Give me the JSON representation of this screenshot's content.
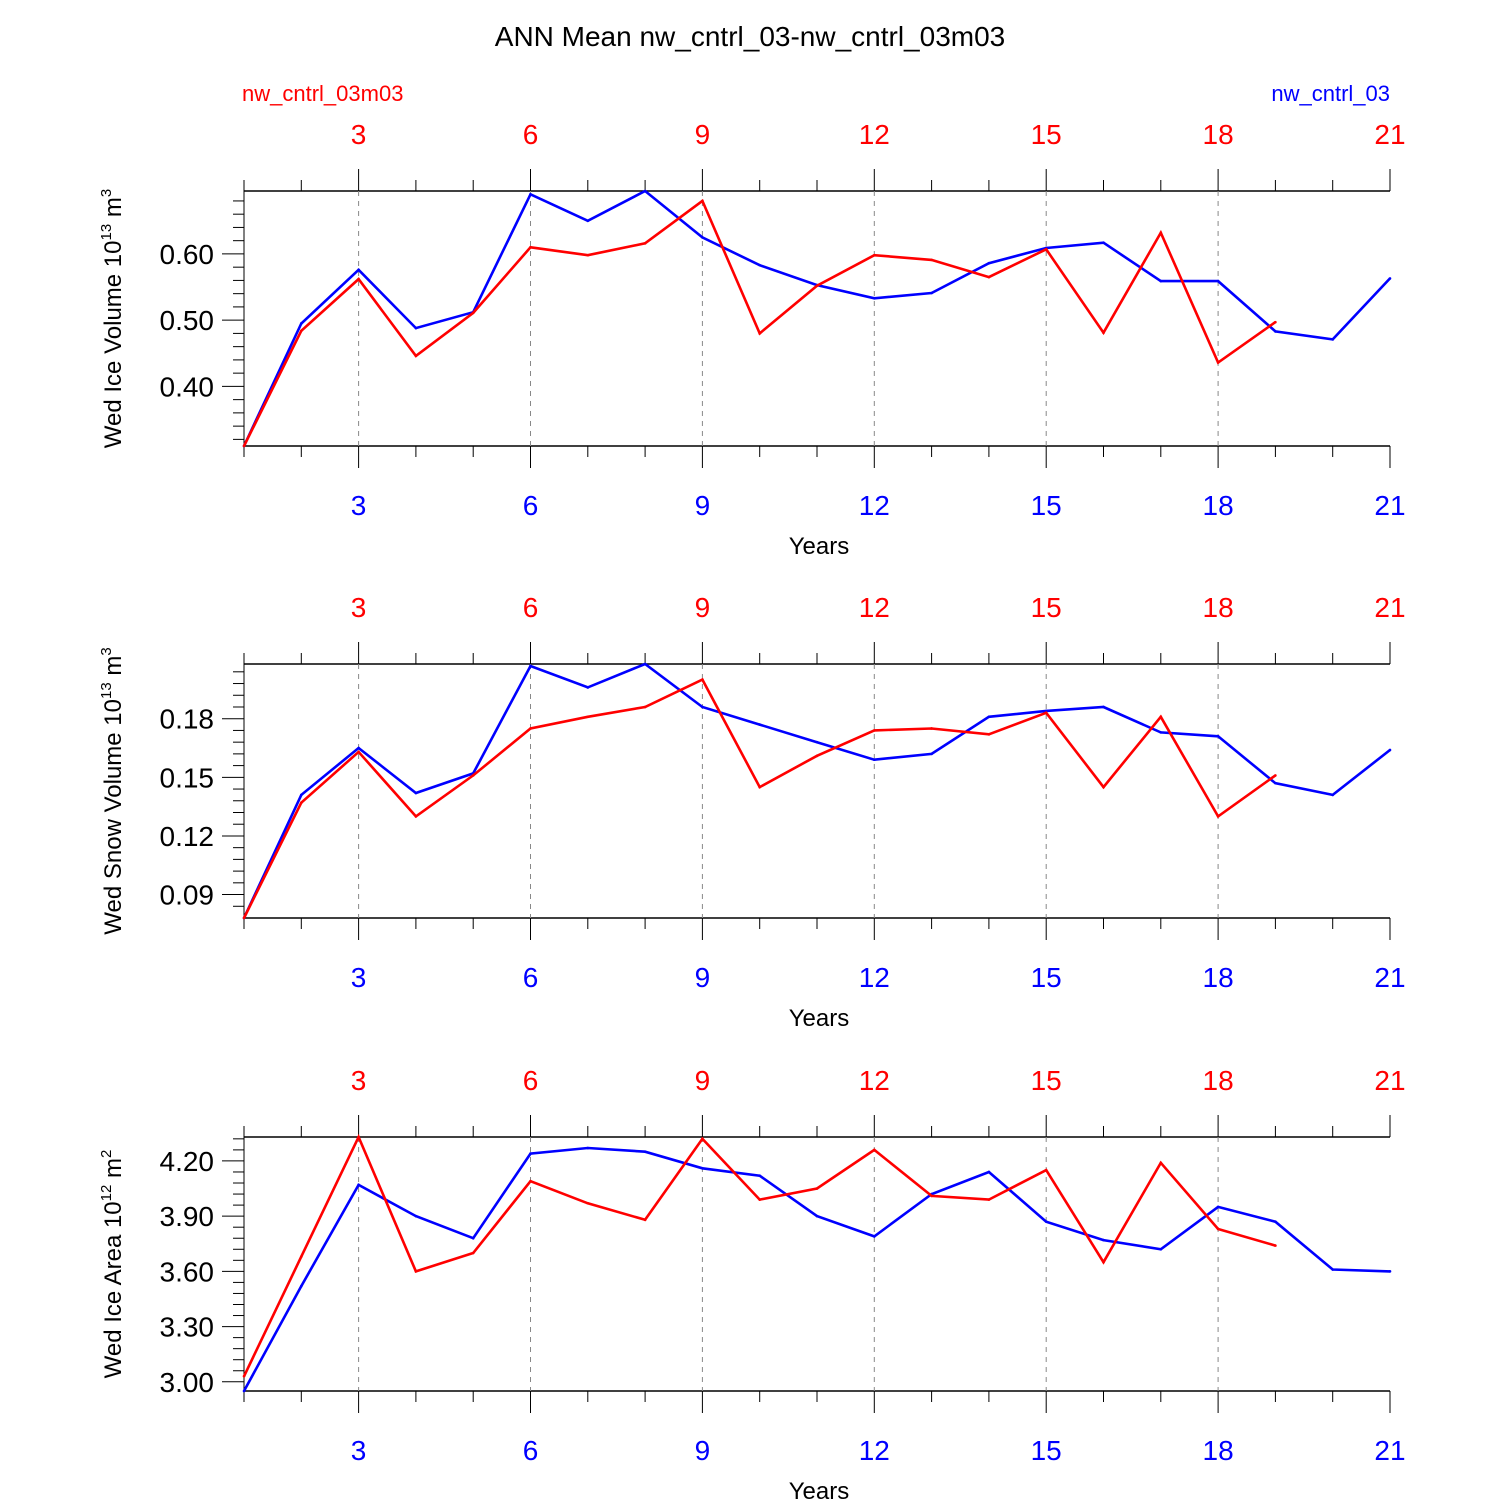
{
  "title": "ANN Mean nw_cntrl_03-nw_cntrl_03m03",
  "legend": {
    "left": "nw_cntrl_03m03",
    "right": "nw_cntrl_03"
  },
  "colors": {
    "nw_cntrl_03m03": "#ff0000",
    "nw_cntrl_03": "#0000ff",
    "axis": "#000000",
    "grid": "#888888"
  },
  "chart_data": [
    {
      "type": "line",
      "ylabel": "Wed Ice Volume 10^13 m^3",
      "xlabel": "Years",
      "xlim": [
        1,
        21
      ],
      "ylim": [
        0.31,
        0.695
      ],
      "x_ticks": [
        3,
        6,
        9,
        12,
        15,
        18,
        21
      ],
      "y_ticks": [
        0.4,
        0.5,
        0.6
      ],
      "y_tick_labels": [
        "0.40",
        "0.50",
        "0.60"
      ],
      "series": [
        {
          "name": "nw_cntrl_03",
          "color": "#0000ff",
          "x": [
            1,
            2,
            3,
            4,
            5,
            6,
            7,
            8,
            9,
            10,
            11,
            12,
            13,
            14,
            15,
            16,
            17,
            18,
            19,
            20,
            21
          ],
          "y": [
            0.31,
            0.495,
            0.576,
            0.488,
            0.512,
            0.69,
            0.65,
            0.695,
            0.625,
            0.583,
            0.553,
            0.533,
            0.541,
            0.586,
            0.609,
            0.617,
            0.559,
            0.559,
            0.483,
            0.471,
            0.563
          ]
        },
        {
          "name": "nw_cntrl_03m03",
          "color": "#ff0000",
          "x": [
            1,
            2,
            3,
            4,
            5,
            6,
            7,
            8,
            9,
            10,
            11,
            12,
            13,
            14,
            15,
            16,
            17,
            18,
            19
          ],
          "y": [
            0.31,
            0.484,
            0.562,
            0.446,
            0.511,
            0.61,
            0.598,
            0.616,
            0.68,
            0.48,
            0.552,
            0.598,
            0.591,
            0.565,
            0.607,
            0.481,
            0.632,
            0.436,
            0.497
          ]
        }
      ]
    },
    {
      "type": "line",
      "ylabel": "Wed Snow Volume 10^13 m^3",
      "xlabel": "Years",
      "xlim": [
        1,
        21
      ],
      "ylim": [
        0.078,
        0.208
      ],
      "x_ticks": [
        3,
        6,
        9,
        12,
        15,
        18,
        21
      ],
      "y_ticks": [
        0.09,
        0.12,
        0.15,
        0.18
      ],
      "y_tick_labels": [
        "0.09",
        "0.12",
        "0.15",
        "0.18"
      ],
      "series": [
        {
          "name": "nw_cntrl_03",
          "color": "#0000ff",
          "x": [
            1,
            2,
            3,
            4,
            5,
            6,
            7,
            8,
            9,
            10,
            11,
            12,
            13,
            14,
            15,
            16,
            17,
            18,
            19,
            20,
            21
          ],
          "y": [
            0.078,
            0.141,
            0.165,
            0.142,
            0.152,
            0.207,
            0.196,
            0.208,
            0.186,
            0.177,
            0.168,
            0.159,
            0.162,
            0.181,
            0.184,
            0.186,
            0.173,
            0.171,
            0.147,
            0.141,
            0.164
          ]
        },
        {
          "name": "nw_cntrl_03m03",
          "color": "#ff0000",
          "x": [
            1,
            2,
            3,
            4,
            5,
            6,
            7,
            8,
            9,
            10,
            11,
            12,
            13,
            14,
            15,
            16,
            17,
            18,
            19
          ],
          "y": [
            0.078,
            0.137,
            0.163,
            0.13,
            0.151,
            0.175,
            0.181,
            0.186,
            0.2,
            0.145,
            0.161,
            0.174,
            0.175,
            0.172,
            0.183,
            0.145,
            0.181,
            0.13,
            0.151
          ]
        }
      ]
    },
    {
      "type": "line",
      "ylabel": "Wed Ice Area 10^12 m^2",
      "xlabel": "Years",
      "xlim": [
        1,
        21
      ],
      "ylim": [
        2.95,
        4.33
      ],
      "x_ticks": [
        3,
        6,
        9,
        12,
        15,
        18,
        21
      ],
      "y_ticks": [
        3.0,
        3.3,
        3.6,
        3.9,
        4.2
      ],
      "y_tick_labels": [
        "3.00",
        "3.30",
        "3.60",
        "3.90",
        "4.20"
      ],
      "series": [
        {
          "name": "nw_cntrl_03",
          "color": "#0000ff",
          "x": [
            1,
            2,
            3,
            4,
            5,
            6,
            7,
            8,
            9,
            10,
            11,
            12,
            13,
            14,
            15,
            16,
            17,
            18,
            19,
            20,
            21
          ],
          "y": [
            2.95,
            3.52,
            4.07,
            3.9,
            3.78,
            4.24,
            4.27,
            4.25,
            4.16,
            4.12,
            3.9,
            3.79,
            4.02,
            4.14,
            3.87,
            3.77,
            3.72,
            3.95,
            3.87,
            3.61,
            3.6
          ]
        },
        {
          "name": "nw_cntrl_03m03",
          "color": "#ff0000",
          "x": [
            1,
            2,
            3,
            4,
            5,
            6,
            7,
            8,
            9,
            10,
            11,
            12,
            13,
            14,
            15,
            16,
            17,
            18,
            19
          ],
          "y": [
            3.03,
            3.68,
            4.33,
            3.6,
            3.7,
            4.09,
            3.97,
            3.88,
            4.32,
            3.99,
            4.05,
            4.26,
            4.01,
            3.99,
            4.15,
            3.65,
            4.19,
            3.83,
            3.74
          ]
        }
      ]
    }
  ]
}
